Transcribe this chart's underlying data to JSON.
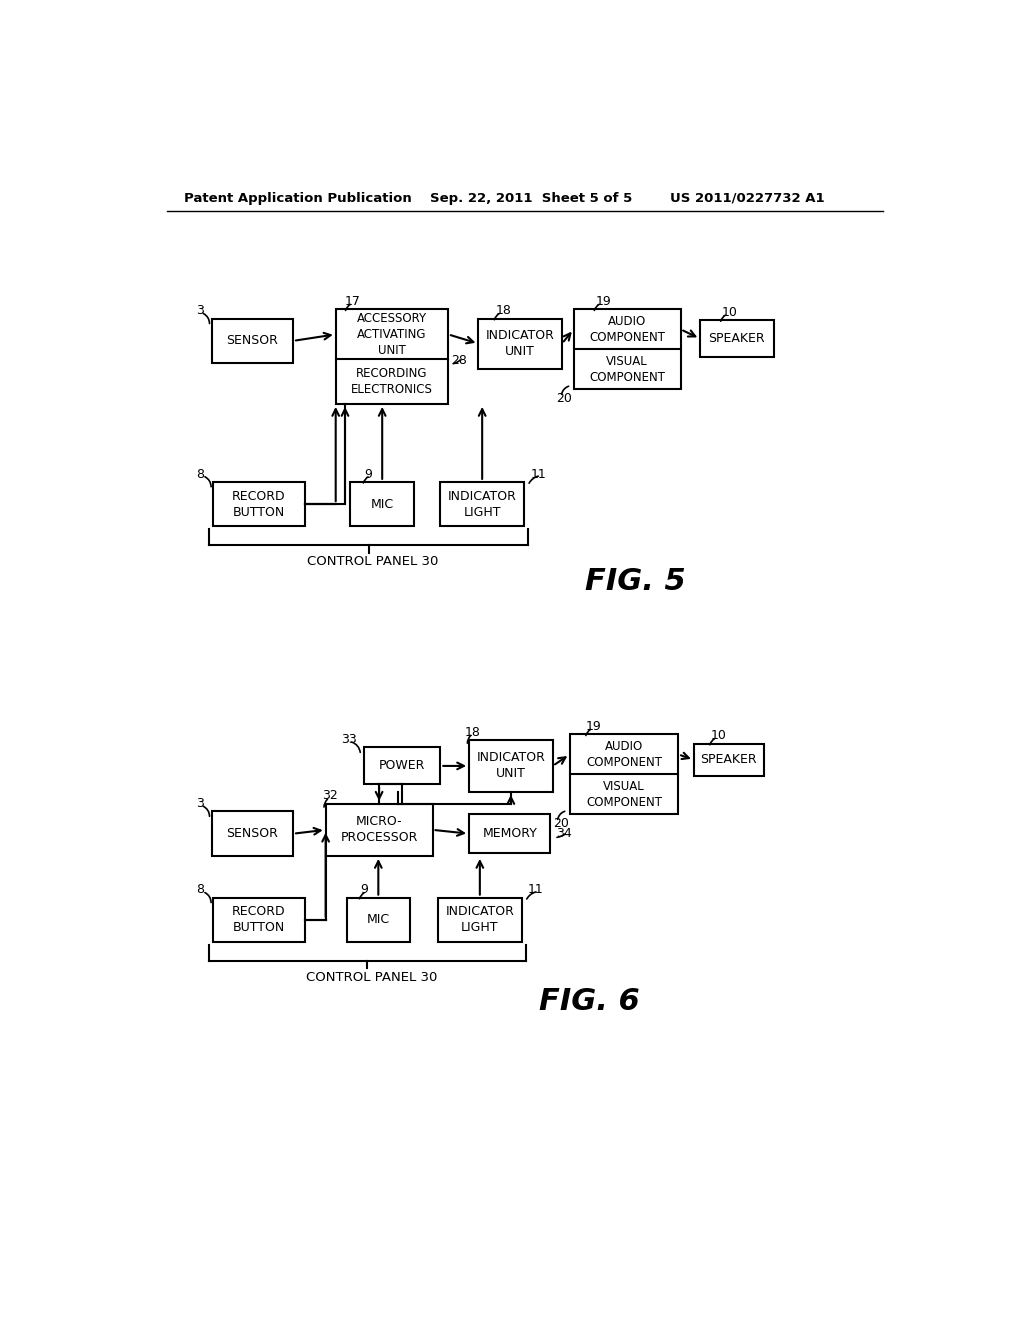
{
  "background_color": "#ffffff",
  "header_left": "Patent Application Publication",
  "header_center": "Sep. 22, 2011  Sheet 5 of 5",
  "header_right": "US 2011/0227732 A1",
  "fig5_label": "FIG. 5",
  "fig6_label": "FIG. 6",
  "fig5_title": "CONTROL PANEL 30",
  "fig6_title": "CONTROL PANEL 30"
}
